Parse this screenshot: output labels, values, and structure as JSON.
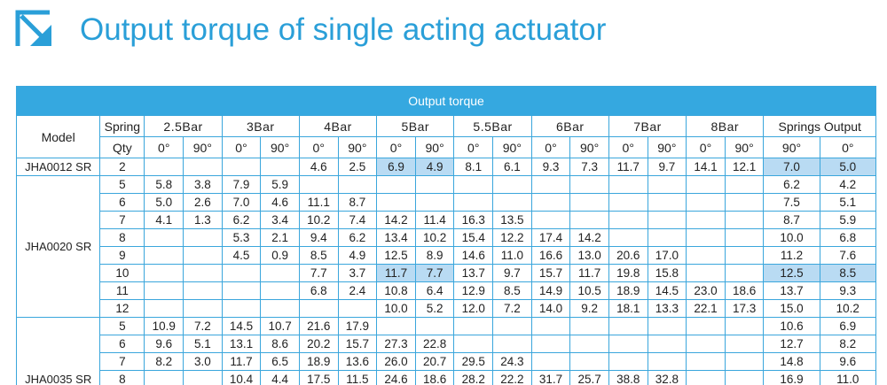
{
  "header": {
    "title": "Output torque of single acting actuator"
  },
  "table": {
    "caption": "Output torque",
    "columns": {
      "model": "Model",
      "spring": "Spring",
      "qty": "Qty",
      "pressures": [
        "2.5Bar",
        "3Bar",
        "4Bar",
        "5Bar",
        "5.5Bar",
        "6Bar",
        "7Bar",
        "8Bar"
      ],
      "springs_output": "Springs Output",
      "angles": [
        "0°",
        "90°",
        "0°",
        "90°",
        "0°",
        "90°",
        "0°",
        "90°",
        "0°",
        "90°",
        "0°",
        "90°",
        "0°",
        "90°",
        "0°",
        "90°",
        "90°",
        "0°"
      ]
    },
    "groups": [
      {
        "model": "JHA0012 SR",
        "rows": [
          {
            "qty": "2",
            "values": [
              null,
              null,
              null,
              null,
              "4.6",
              "2.5",
              "6.9",
              "4.9",
              "8.1",
              "6.1",
              "9.3",
              "7.3",
              "11.7",
              "9.7",
              "14.1",
              "12.1"
            ],
            "springs": [
              "7.0",
              "5.0"
            ]
          }
        ]
      },
      {
        "model": "JHA0020 SR",
        "rows": [
          {
            "qty": "5",
            "values": [
              "5.8",
              "3.8",
              "7.9",
              "5.9",
              null,
              null,
              null,
              null,
              null,
              null,
              null,
              null,
              null,
              null,
              null,
              null
            ],
            "springs": [
              "6.2",
              "4.2"
            ]
          },
          {
            "qty": "6",
            "values": [
              "5.0",
              "2.6",
              "7.0",
              "4.6",
              "11.1",
              "8.7",
              null,
              null,
              null,
              null,
              null,
              null,
              null,
              null,
              null,
              null
            ],
            "springs": [
              "7.5",
              "5.1"
            ]
          },
          {
            "qty": "7",
            "values": [
              "4.1",
              "1.3",
              "6.2",
              "3.4",
              "10.2",
              "7.4",
              "14.2",
              "11.4",
              "16.3",
              "13.5",
              null,
              null,
              null,
              null,
              null,
              null
            ],
            "springs": [
              "8.7",
              "5.9"
            ]
          },
          {
            "qty": "8",
            "values": [
              null,
              null,
              "5.3",
              "2.1",
              "9.4",
              "6.2",
              "13.4",
              "10.2",
              "15.4",
              "12.2",
              "17.4",
              "14.2",
              null,
              null,
              null,
              null
            ],
            "springs": [
              "10.0",
              "6.8"
            ]
          },
          {
            "qty": "9",
            "values": [
              null,
              null,
              "4.5",
              "0.9",
              "8.5",
              "4.9",
              "12.5",
              "8.9",
              "14.6",
              "11.0",
              "16.6",
              "13.0",
              "20.6",
              "17.0",
              null,
              null
            ],
            "springs": [
              "11.2",
              "7.6"
            ]
          },
          {
            "qty": "10",
            "values": [
              null,
              null,
              null,
              null,
              "7.7",
              "3.7",
              "11.7",
              "7.7",
              "13.7",
              "9.7",
              "15.7",
              "11.7",
              "19.8",
              "15.8",
              null,
              null
            ],
            "springs": [
              "12.5",
              "8.5"
            ]
          },
          {
            "qty": "11",
            "values": [
              null,
              null,
              null,
              null,
              "6.8",
              "2.4",
              "10.8",
              "6.4",
              "12.9",
              "8.5",
              "14.9",
              "10.5",
              "18.9",
              "14.5",
              "23.0",
              "18.6"
            ],
            "springs": [
              "13.7",
              "9.3"
            ]
          },
          {
            "qty": "12",
            "values": [
              null,
              null,
              null,
              null,
              null,
              null,
              "10.0",
              "5.2",
              "12.0",
              "7.2",
              "14.0",
              "9.2",
              "18.1",
              "13.3",
              "22.1",
              "17.3"
            ],
            "springs": [
              "15.0",
              "10.2"
            ]
          }
        ]
      },
      {
        "model": "JHA0035 SR",
        "rows": [
          {
            "qty": "5",
            "values": [
              "10.9",
              "7.2",
              "14.5",
              "10.7",
              "21.6",
              "17.9",
              null,
              null,
              null,
              null,
              null,
              null,
              null,
              null,
              null,
              null
            ],
            "springs": [
              "10.6",
              "6.9"
            ]
          },
          {
            "qty": "6",
            "values": [
              "9.6",
              "5.1",
              "13.1",
              "8.6",
              "20.2",
              "15.7",
              "27.3",
              "22.8",
              null,
              null,
              null,
              null,
              null,
              null,
              null,
              null
            ],
            "springs": [
              "12.7",
              "8.2"
            ]
          },
          {
            "qty": "7",
            "values": [
              "8.2",
              "3.0",
              "11.7",
              "6.5",
              "18.9",
              "13.6",
              "26.0",
              "20.7",
              "29.5",
              "24.3",
              null,
              null,
              null,
              null,
              null,
              null
            ],
            "springs": [
              "14.8",
              "9.6"
            ]
          },
          {
            "qty": "8",
            "values": [
              null,
              null,
              "10.4",
              "4.4",
              "17.5",
              "11.5",
              "24.6",
              "18.6",
              "28.2",
              "22.2",
              "31.7",
              "25.7",
              "38.8",
              "32.8",
              null,
              null
            ],
            "springs": [
              "16.9",
              "11.0"
            ]
          }
        ]
      }
    ]
  }
}
